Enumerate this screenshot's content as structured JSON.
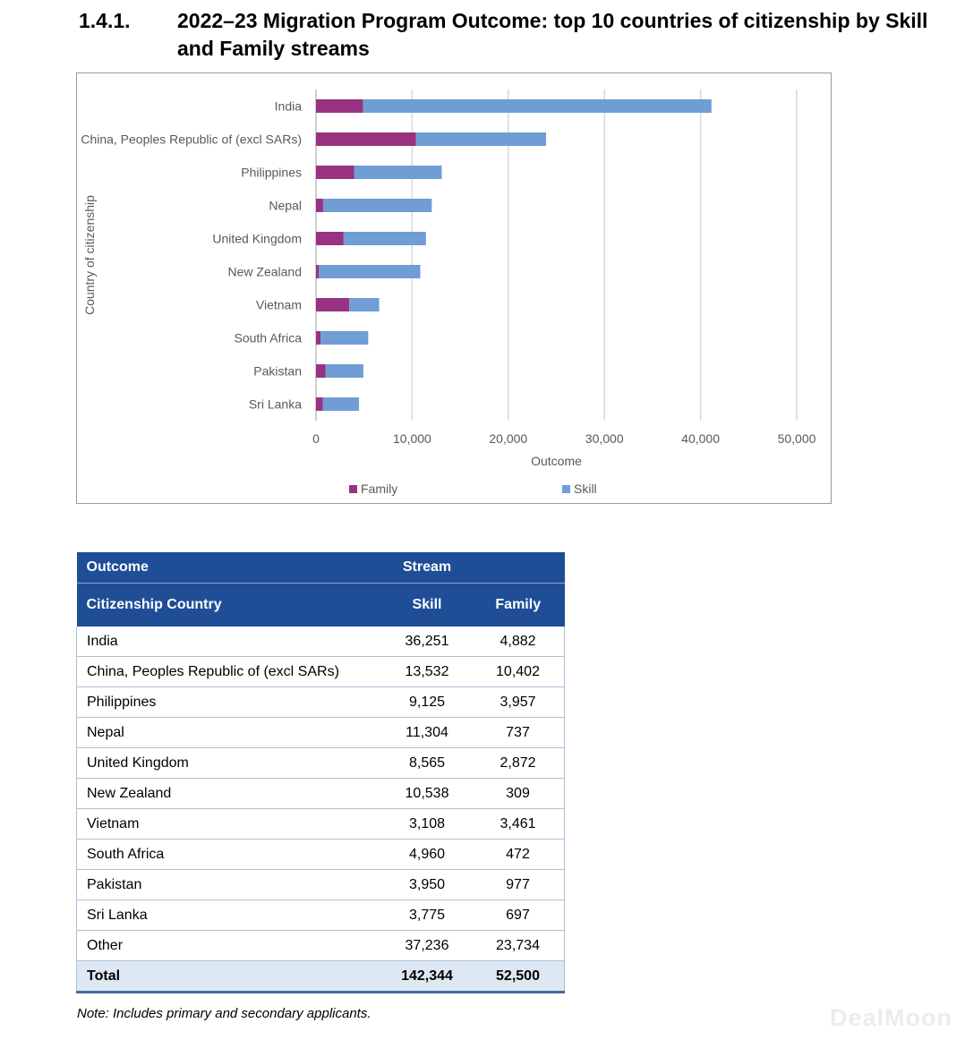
{
  "heading": {
    "number": "1.4.1.",
    "title": "2022–23 Migration Program Outcome: top 10 countries of citizenship by Skill and Family streams"
  },
  "chart_data": {
    "type": "bar",
    "orientation": "horizontal",
    "stacked": true,
    "categories": [
      "India",
      "China, Peoples Republic of (excl SARs)",
      "Philippines",
      "Nepal",
      "United Kingdom",
      "New Zealand",
      "Vietnam",
      "South Africa",
      "Pakistan",
      "Sri Lanka"
    ],
    "series": [
      {
        "name": "Family",
        "values": [
          4882,
          10402,
          3957,
          737,
          2872,
          309,
          3461,
          472,
          977,
          697
        ],
        "color": "#983281"
      },
      {
        "name": "Skill",
        "values": [
          36251,
          13532,
          9125,
          11304,
          8565,
          10538,
          3108,
          4960,
          3950,
          3775
        ],
        "color": "#6f9dd4"
      }
    ],
    "xlabel": "Outcome",
    "ylabel": "Country of citizenship",
    "xlim": [
      0,
      50000
    ],
    "xticks": [
      "0",
      "10,000",
      "20,000",
      "30,000",
      "40,000",
      "50,000"
    ],
    "grid": "vertical",
    "legend": "bottom"
  },
  "table": {
    "header_row1": [
      "Outcome",
      "Stream",
      ""
    ],
    "header_row2": [
      "Citizenship Country",
      "Skill",
      "Family"
    ],
    "rows": [
      [
        "India",
        "36,251",
        "4,882"
      ],
      [
        "China, Peoples Republic of (excl SARs)",
        "13,532",
        "10,402"
      ],
      [
        "Philippines",
        "9,125",
        "3,957"
      ],
      [
        "Nepal",
        "11,304",
        "737"
      ],
      [
        "United Kingdom",
        "8,565",
        "2,872"
      ],
      [
        "New Zealand",
        "10,538",
        "309"
      ],
      [
        "Vietnam",
        "3,108",
        "3,461"
      ],
      [
        "South Africa",
        "4,960",
        "472"
      ],
      [
        "Pakistan",
        "3,950",
        "977"
      ],
      [
        "Sri Lanka",
        "3,775",
        "697"
      ],
      [
        "Other",
        "37,236",
        "23,734"
      ]
    ],
    "total": [
      "Total",
      "142,344",
      "52,500"
    ]
  },
  "note": "Note: Includes primary and secondary applicants.",
  "watermark": "DealMoon"
}
